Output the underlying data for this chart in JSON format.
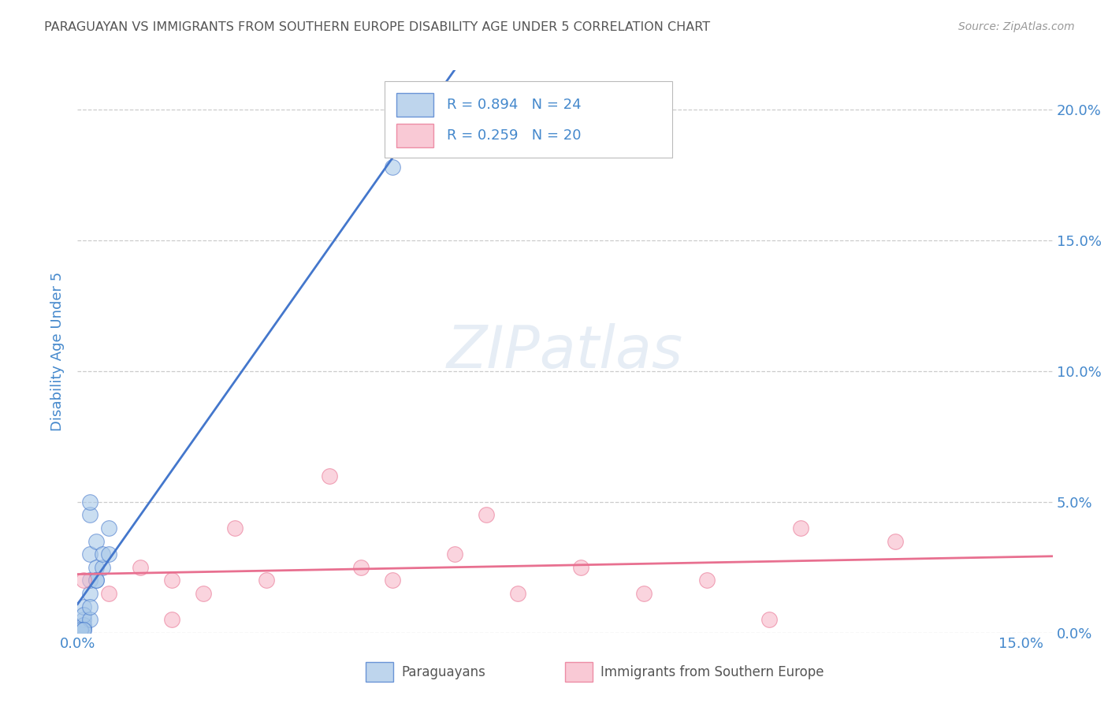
{
  "title": "PARAGUAYAN VS IMMIGRANTS FROM SOUTHERN EUROPE DISABILITY AGE UNDER 5 CORRELATION CHART",
  "source": "Source: ZipAtlas.com",
  "ylabel": "Disability Age Under 5",
  "legend1_r": "R = 0.894",
  "legend1_n": "N = 24",
  "legend2_r": "R = 0.259",
  "legend2_n": "N = 20",
  "legend_label1": "Paraguayans",
  "legend_label2": "Immigrants from Southern Europe",
  "blue_scatter_x": [
    0.001,
    0.001,
    0.001,
    0.001,
    0.001,
    0.002,
    0.002,
    0.002,
    0.002,
    0.003,
    0.003,
    0.003,
    0.004,
    0.004,
    0.005,
    0.005,
    0.001,
    0.002,
    0.002,
    0.003,
    0.0005,
    0.001,
    0.002,
    0.05
  ],
  "blue_scatter_y": [
    0.002,
    0.005,
    0.003,
    0.01,
    0.007,
    0.045,
    0.03,
    0.015,
    0.02,
    0.025,
    0.02,
    0.035,
    0.025,
    0.03,
    0.04,
    0.03,
    0.001,
    0.005,
    0.01,
    0.02,
    0.001,
    0.001,
    0.05,
    0.178
  ],
  "pink_scatter_x": [
    0.001,
    0.005,
    0.01,
    0.015,
    0.015,
    0.02,
    0.025,
    0.03,
    0.04,
    0.045,
    0.05,
    0.06,
    0.065,
    0.07,
    0.08,
    0.09,
    0.1,
    0.11,
    0.115,
    0.13
  ],
  "pink_scatter_y": [
    0.02,
    0.015,
    0.025,
    0.005,
    0.02,
    0.015,
    0.04,
    0.02,
    0.06,
    0.025,
    0.02,
    0.03,
    0.045,
    0.015,
    0.025,
    0.015,
    0.02,
    0.005,
    0.04,
    0.035
  ],
  "blue_color": "#a8c8e8",
  "blue_line_color": "#4477cc",
  "pink_color": "#f8b8c8",
  "pink_line_color": "#e87090",
  "background_color": "#ffffff",
  "grid_color": "#cccccc",
  "axis_color": "#4488cc",
  "xlim": [
    0.0,
    0.155
  ],
  "ylim": [
    0.0,
    0.215
  ],
  "yticks": [
    0.0,
    0.05,
    0.1,
    0.15,
    0.2
  ],
  "ytick_labels": [
    "0.0%",
    "5.0%",
    "10.0%",
    "15.0%",
    "20.0%"
  ]
}
